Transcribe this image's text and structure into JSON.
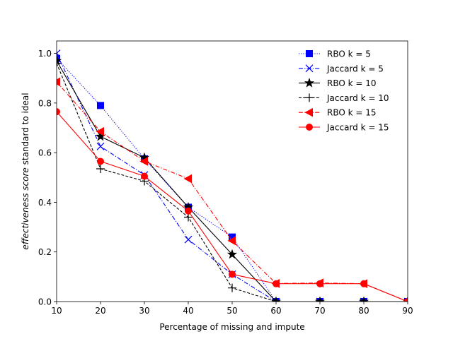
{
  "chart_data": {
    "type": "line",
    "title": "",
    "xlabel": "Percentage of missing and impute",
    "ylabel_italic": "effectiveness score",
    "ylabel_rest": " standard to ideal",
    "xlim": [
      10,
      90
    ],
    "ylim": [
      0.0,
      1.05
    ],
    "xticks": [
      10,
      20,
      30,
      40,
      50,
      60,
      70,
      80,
      90
    ],
    "yticks": [
      0.0,
      0.2,
      0.4,
      0.6,
      0.8,
      1.0
    ],
    "xtick_labels": [
      "10",
      "20",
      "30",
      "40",
      "50",
      "60",
      "70",
      "80",
      "90"
    ],
    "ytick_labels": [
      "0.0",
      "0.2",
      "0.4",
      "0.6",
      "0.8",
      "1.0"
    ],
    "grid": false,
    "legend_position": "top-right",
    "x": [
      10,
      20,
      30,
      40,
      50,
      60,
      70,
      80,
      90
    ],
    "series": [
      {
        "name": "RBO k = 5",
        "color": "#0000ff",
        "dash": "dotted",
        "marker": "square",
        "values": [
          0.98,
          0.79,
          0.575,
          0.38,
          0.26,
          0.0,
          0.0,
          0.0,
          0.0
        ]
      },
      {
        "name": "Jaccard k = 5",
        "color": "#0000ff",
        "dash": "dashdot",
        "marker": "x",
        "values": [
          1.0,
          0.625,
          0.51,
          0.25,
          0.11,
          0.0,
          0.0,
          0.0,
          0.0
        ]
      },
      {
        "name": "RBO k = 10",
        "color": "#000000",
        "dash": "solid",
        "marker": "star",
        "values": [
          0.97,
          0.665,
          0.58,
          0.38,
          0.19,
          0.0,
          0.0,
          0.0,
          0.0
        ]
      },
      {
        "name": "Jaccard k = 10",
        "color": "#000000",
        "dash": "dashed",
        "marker": "plus",
        "values": [
          0.96,
          0.535,
          0.485,
          0.34,
          0.055,
          0.0,
          0.0,
          0.0,
          0.0
        ]
      },
      {
        "name": "RBO k = 15",
        "color": "#ff0000",
        "dash": "dashdot",
        "marker": "triangle-left",
        "values": [
          0.885,
          0.685,
          0.565,
          0.495,
          0.245,
          0.073,
          0.075,
          0.072,
          0.0
        ]
      },
      {
        "name": "Jaccard k = 15",
        "color": "#ff0000",
        "dash": "solid",
        "marker": "circle",
        "values": [
          0.765,
          0.565,
          0.505,
          0.365,
          0.11,
          0.072,
          0.072,
          0.072,
          0.0
        ]
      }
    ]
  }
}
